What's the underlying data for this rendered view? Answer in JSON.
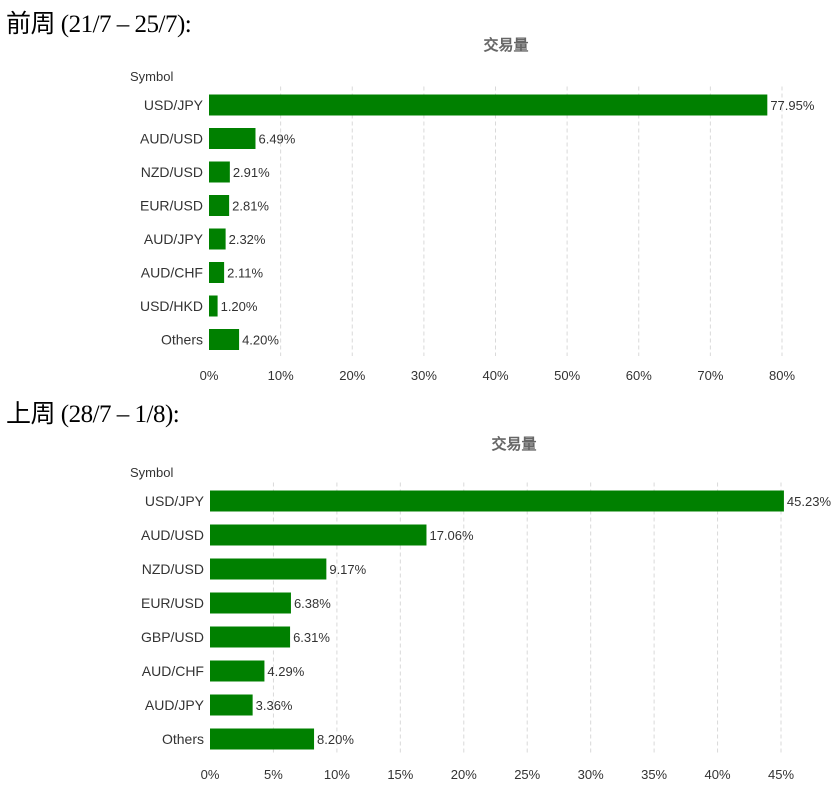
{
  "sections": [
    {
      "heading": "前周 (21/7 – 25/7):",
      "chart_data": {
        "type": "bar",
        "orientation": "horizontal",
        "title": "交易量",
        "ylabel": "Symbol",
        "categories": [
          "USD/JPY",
          "AUD/USD",
          "NZD/USD",
          "EUR/USD",
          "AUD/JPY",
          "AUD/CHF",
          "USD/HKD",
          "Others"
        ],
        "values": [
          77.95,
          6.49,
          2.91,
          2.81,
          2.32,
          2.11,
          1.2,
          4.2
        ],
        "value_labels": [
          "77.95%",
          "6.49%",
          "2.91%",
          "2.81%",
          "2.32%",
          "2.11%",
          "1.20%",
          "4.20%"
        ],
        "xlim": [
          0,
          80
        ],
        "xticks": [
          0,
          10,
          20,
          30,
          40,
          50,
          60,
          70,
          80
        ],
        "xtick_labels": [
          "0%",
          "10%",
          "20%",
          "30%",
          "40%",
          "50%",
          "60%",
          "70%",
          "80%"
        ],
        "bar_color": "#008000",
        "grid": "vertical-dashed"
      }
    },
    {
      "heading": "上周 (28/7 – 1/8):",
      "chart_data": {
        "type": "bar",
        "orientation": "horizontal",
        "title": "交易量",
        "ylabel": "Symbol",
        "categories": [
          "USD/JPY",
          "AUD/USD",
          "NZD/USD",
          "EUR/USD",
          "GBP/USD",
          "AUD/CHF",
          "AUD/JPY",
          "Others"
        ],
        "values": [
          45.23,
          17.06,
          9.17,
          6.38,
          6.31,
          4.29,
          3.36,
          8.2
        ],
        "value_labels": [
          "45.23%",
          "17.06%",
          "9.17%",
          "6.38%",
          "6.31%",
          "4.29%",
          "3.36%",
          "8.20%"
        ],
        "xlim": [
          0,
          45
        ],
        "xticks": [
          0,
          5,
          10,
          15,
          20,
          25,
          30,
          35,
          40,
          45
        ],
        "xtick_labels": [
          "0%",
          "5%",
          "10%",
          "15%",
          "20%",
          "25%",
          "30%",
          "35%",
          "40%",
          "45%"
        ],
        "bar_color": "#008000",
        "grid": "vertical-dashed"
      }
    }
  ]
}
